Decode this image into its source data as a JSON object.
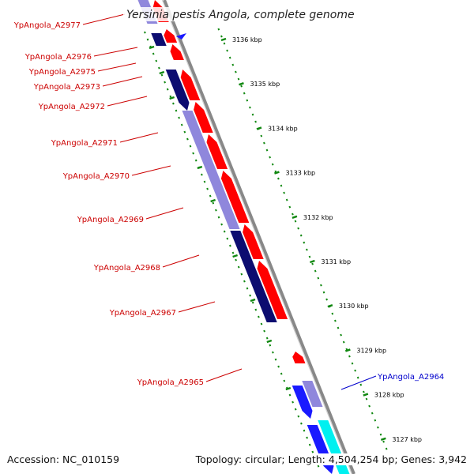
{
  "title": "Yersinia pestis Angola, complete genome",
  "footer": {
    "accession": "Accession: NC_010159",
    "summary": "Topology: circular; Length: 4,504,254 bp; Genes: 3,942"
  },
  "colors": {
    "forward_cds": "#ff0000",
    "reverse_cds": "#1a1aff",
    "reverse_alt": "#7b72d6",
    "reverse_dark": "#0c0c70",
    "cyan_feature": "#00f0f0",
    "ruler_ticks": "#118811",
    "backbone": "#888888",
    "label_red": "#cc0000",
    "label_blue": "#0000cc"
  },
  "ruler": [
    "3136 kbp",
    "3135 kbp",
    "3134 kbp",
    "3133 kbp",
    "3132 kbp",
    "3131 kbp",
    "3130 kbp",
    "3129 kbp",
    "3128 kbp",
    "3127 kbp"
  ],
  "gene_labels": [
    {
      "text": "YpAngola_A2977",
      "color": "red"
    },
    {
      "text": "YpAngola_A2976",
      "color": "red"
    },
    {
      "text": "YpAngola_A2975",
      "color": "red"
    },
    {
      "text": "YpAngola_A2973",
      "color": "red"
    },
    {
      "text": "YpAngola_A2972",
      "color": "red"
    },
    {
      "text": "YpAngola_A2971",
      "color": "red"
    },
    {
      "text": "YpAngola_A2970",
      "color": "red"
    },
    {
      "text": "YpAngola_A2969",
      "color": "red"
    },
    {
      "text": "YpAngola_A2968",
      "color": "red"
    },
    {
      "text": "YpAngola_A2967",
      "color": "red"
    },
    {
      "text": "YpAngola_A2965",
      "color": "red"
    },
    {
      "text": "YpAngola_A2964",
      "color": "blue"
    }
  ]
}
